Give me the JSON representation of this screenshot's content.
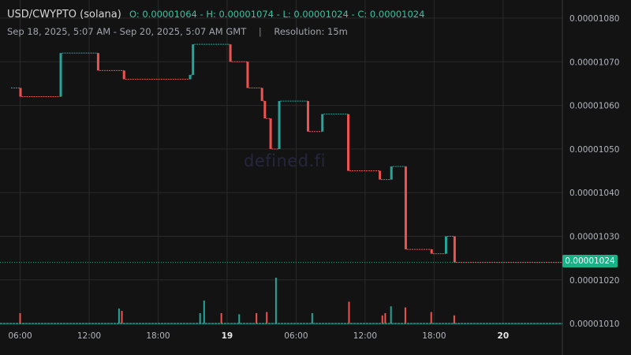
{
  "header": {
    "symbol": "USD/CWYPTO (solana)",
    "ohlc": "O: 0.00001064 - H: 0.00001074 - L: 0.00001024 - C: 0.00001024",
    "range": "Sep 18, 2025, 5:07 AM - Sep 20, 2025, 5:07 AM GMT",
    "separator": "|",
    "resolution": "Resolution: 15m"
  },
  "watermark": "defined.fi",
  "last_price_label": "0.00001024",
  "colors": {
    "up": "#26a69a",
    "down": "#ef5350",
    "background": "#131313",
    "grid": "#2a2a2a",
    "last_price": "#1bb187"
  },
  "chart_data": {
    "type": "candlestick",
    "yaxis": {
      "ticks": [
        "0.00001080",
        "0.00001070",
        "0.00001060",
        "0.00001050",
        "0.00001040",
        "0.00001030",
        "0.00001020",
        "0.00001010"
      ],
      "range": [
        1.01e-05,
        1.08e-05
      ]
    },
    "xaxis": {
      "tick_labels": [
        "06:00",
        "12:00",
        "18:00",
        "19",
        "06:00",
        "12:00",
        "18:00",
        "20"
      ],
      "bold_labels": [
        "19",
        "20"
      ],
      "range_hours": [
        "Sep 18, 05:07",
        "Sep 20, 05:07"
      ]
    },
    "last_price": 1.024e-05,
    "grid": true,
    "candles": [
      {
        "x": 5.07,
        "o": 1.064e-05,
        "c": 1.064e-05
      },
      {
        "x": 6.0,
        "o": 1.064e-05,
        "c": 1.062e-05
      },
      {
        "x": 9.5,
        "o": 1.062e-05,
        "c": 1.072e-05
      },
      {
        "x": 12.75,
        "o": 1.072e-05,
        "c": 1.068e-05
      },
      {
        "x": 15.0,
        "o": 1.068e-05,
        "c": 1.066e-05
      },
      {
        "x": 20.75,
        "o": 1.066e-05,
        "c": 1.067e-05
      },
      {
        "x": 21.0,
        "o": 1.067e-05,
        "c": 1.074e-05
      },
      {
        "x": 24.25,
        "o": 1.074e-05,
        "c": 1.07e-05
      },
      {
        "x": 25.75,
        "o": 1.07e-05,
        "c": 1.064e-05
      },
      {
        "x": 27.0,
        "o": 1.064e-05,
        "c": 1.061e-05
      },
      {
        "x": 27.25,
        "o": 1.061e-05,
        "c": 1.057e-05
      },
      {
        "x": 27.75,
        "o": 1.057e-05,
        "c": 1.05e-05
      },
      {
        "x": 28.5,
        "o": 1.05e-05,
        "c": 1.061e-05
      },
      {
        "x": 31.0,
        "o": 1.061e-05,
        "c": 1.054e-05
      },
      {
        "x": 32.25,
        "o": 1.054e-05,
        "c": 1.058e-05
      },
      {
        "x": 34.5,
        "o": 1.058e-05,
        "c": 1.045e-05
      },
      {
        "x": 37.25,
        "o": 1.045e-05,
        "c": 1.043e-05
      },
      {
        "x": 38.25,
        "o": 1.043e-05,
        "c": 1.046e-05
      },
      {
        "x": 39.5,
        "o": 1.046e-05,
        "c": 1.027e-05
      },
      {
        "x": 41.75,
        "o": 1.027e-05,
        "c": 1.026e-05
      },
      {
        "x": 43.0,
        "o": 1.026e-05,
        "c": 1.03e-05
      },
      {
        "x": 43.75,
        "o": 1.03e-05,
        "c": 1.024e-05
      }
    ],
    "volume": [
      {
        "x": 6.0,
        "v": 0.45,
        "dir": "down"
      },
      {
        "x": 14.6,
        "v": 0.65,
        "dir": "up"
      },
      {
        "x": 14.85,
        "v": 0.55,
        "dir": "down"
      },
      {
        "x": 21.65,
        "v": 0.45,
        "dir": "up"
      },
      {
        "x": 22.0,
        "v": 1.0,
        "dir": "up"
      },
      {
        "x": 23.5,
        "v": 0.45,
        "dir": "down"
      },
      {
        "x": 25.05,
        "v": 0.4,
        "dir": "up"
      },
      {
        "x": 26.55,
        "v": 0.45,
        "dir": "down"
      },
      {
        "x": 27.45,
        "v": 0.5,
        "dir": "down"
      },
      {
        "x": 28.25,
        "v": 2.0,
        "dir": "up"
      },
      {
        "x": 31.4,
        "v": 0.45,
        "dir": "up"
      },
      {
        "x": 34.6,
        "v": 0.95,
        "dir": "down"
      },
      {
        "x": 37.5,
        "v": 0.35,
        "dir": "down"
      },
      {
        "x": 37.75,
        "v": 0.45,
        "dir": "down"
      },
      {
        "x": 38.25,
        "v": 0.75,
        "dir": "up"
      },
      {
        "x": 39.5,
        "v": 0.7,
        "dir": "down"
      },
      {
        "x": 41.75,
        "v": 0.5,
        "dir": "down"
      },
      {
        "x": 43.75,
        "v": 0.35,
        "dir": "down"
      }
    ]
  }
}
